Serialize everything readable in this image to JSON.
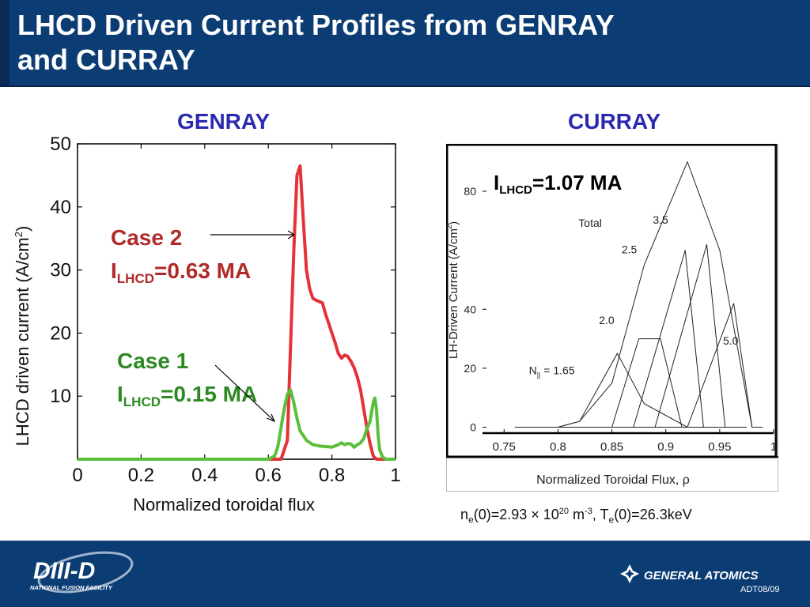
{
  "slide": {
    "title_line1": "LHCD Driven Current Profiles from GENRAY",
    "title_line2": "and CURRAY",
    "footer_code": "ADT08/09",
    "logos": {
      "diii_d_main": "DIII-D",
      "diii_d_sub": "NATIONAL FUSION FACILITY",
      "general_atomics": "GENERAL ATOMICS"
    },
    "params": {
      "ne_label": "n",
      "ne_sub": "e",
      "ne_value": "(0)=2.93 × 10",
      "ne_exp": "20",
      "ne_unit": " m",
      "ne_unit_exp": "-3",
      "sep": ", T",
      "te_sub": "e",
      "te_value": "(0)=26.3keV"
    }
  },
  "chart_data": [
    {
      "type": "line",
      "heading": "GENRAY",
      "xlabel": "Normalized toroidal flux",
      "ylabel_main": "LHCD driven current (A/cm",
      "ylabel_sup": "2",
      "ylabel_end": ")",
      "xlim": [
        0,
        1
      ],
      "ylim": [
        0,
        50
      ],
      "xticks": [
        "0",
        "0.2",
        "0.4",
        "0.6",
        "0.8",
        "1"
      ],
      "yticks": [
        "10",
        "20",
        "30",
        "40",
        "50"
      ],
      "series": [
        {
          "name": "Case 2",
          "color": "#e53238",
          "x": [
            0.0,
            0.6,
            0.64,
            0.66,
            0.67,
            0.68,
            0.69,
            0.7,
            0.71,
            0.72,
            0.73,
            0.74,
            0.75,
            0.76,
            0.77,
            0.78,
            0.79,
            0.8,
            0.81,
            0.82,
            0.83,
            0.84,
            0.85,
            0.86,
            0.87,
            0.88,
            0.89,
            0.9,
            0.91,
            0.92,
            0.93,
            0.94,
            0.96,
            1.0
          ],
          "values": [
            0,
            0,
            0,
            3,
            18,
            33,
            45,
            46.5,
            38,
            30,
            27,
            25.5,
            25.2,
            25,
            24.8,
            23,
            21.5,
            20,
            18.5,
            16.8,
            16,
            16.5,
            16.3,
            15.5,
            14.5,
            13,
            11,
            8,
            5,
            2.5,
            0.5,
            0,
            0,
            0
          ]
        },
        {
          "name": "Case 1",
          "color": "#5abf3a",
          "x": [
            0.0,
            0.6,
            0.62,
            0.63,
            0.64,
            0.65,
            0.66,
            0.67,
            0.68,
            0.69,
            0.7,
            0.72,
            0.74,
            0.76,
            0.78,
            0.8,
            0.82,
            0.83,
            0.84,
            0.85,
            0.86,
            0.87,
            0.88,
            0.89,
            0.9,
            0.91,
            0.92,
            0.93,
            0.935,
            0.94,
            0.945,
            0.95,
            0.96,
            0.97,
            1.0
          ],
          "values": [
            0,
            0,
            0.5,
            2,
            5,
            8,
            10.3,
            11,
            9,
            6.5,
            4.5,
            3,
            2.3,
            2.1,
            2.0,
            1.9,
            2.3,
            2.6,
            2.3,
            2.5,
            2.4,
            1.9,
            2.3,
            2.6,
            3.3,
            4.8,
            6,
            9,
            9.7,
            8,
            4,
            1.5,
            0.3,
            0,
            0
          ]
        }
      ],
      "annotations": [
        {
          "line1": "Case 2",
          "line2_pre": "I",
          "line2_sub": "LHCD",
          "line2_post": "=0.63 MA",
          "color": "#b02a2a"
        },
        {
          "line1": "Case 1",
          "line2_pre": "I",
          "line2_sub": "LHCD",
          "line2_post": "=0.15 MA",
          "color": "#2d8a22"
        }
      ]
    },
    {
      "type": "line",
      "heading": "CURRAY",
      "xlabel": "Normalized Toroidal Flux, ρ",
      "ylabel": "LH-Driven Current (A/cm  )",
      "ylabel_exp": "2",
      "xlim": [
        0.73,
        1.0
      ],
      "ylim": [
        -2,
        95
      ],
      "xticks": [
        {
          "v": 0.75,
          "t": "0.75"
        },
        {
          "v": 0.8,
          "t": "0.8"
        },
        {
          "v": 0.85,
          "t": "0.85"
        },
        {
          "v": 0.9,
          "t": "0.9"
        },
        {
          "v": 0.95,
          "t": "0.95"
        },
        {
          "v": 1.0,
          "t": "1"
        }
      ],
      "yticks": [
        {
          "v": 0,
          "t": "0"
        },
        {
          "v": 20,
          "t": "20"
        },
        {
          "v": 40,
          "t": "40"
        },
        {
          "v": 80,
          "t": "80"
        }
      ],
      "total_label": {
        "pre": "I",
        "sub": "LHCD",
        "post": "=1.07 MA"
      },
      "series": [
        {
          "name": "N∥ = 1.65",
          "x": [
            0.76,
            0.8,
            0.82,
            0.855,
            0.88,
            0.92,
            0.96
          ],
          "values": [
            0,
            0,
            2,
            25,
            8,
            0,
            0
          ]
        },
        {
          "name": "2.0",
          "x": [
            0.8,
            0.85,
            0.875,
            0.895,
            0.915,
            0.96
          ],
          "values": [
            0,
            0,
            30,
            30,
            0,
            0
          ]
        },
        {
          "name": "2.5",
          "x": [
            0.84,
            0.87,
            0.918,
            0.935,
            0.96
          ],
          "values": [
            0,
            0,
            60,
            0,
            0
          ]
        },
        {
          "name": "3.5",
          "x": [
            0.86,
            0.89,
            0.938,
            0.955,
            0.975
          ],
          "values": [
            0,
            0,
            62,
            0,
            0
          ]
        },
        {
          "name": "5.0",
          "x": [
            0.88,
            0.92,
            0.963,
            0.98,
            0.99
          ],
          "values": [
            0,
            0,
            42,
            0,
            0
          ]
        },
        {
          "name": "Total",
          "x": [
            0.76,
            0.8,
            0.82,
            0.85,
            0.88,
            0.92,
            0.95,
            0.97,
            0.98
          ],
          "values": [
            0,
            0,
            2,
            15,
            55,
            90,
            60,
            20,
            0
          ]
        }
      ],
      "series_labels": [
        {
          "t": "Total",
          "x": 0.819,
          "y": 68
        },
        {
          "t": "2.5",
          "x": 0.859,
          "y": 59
        },
        {
          "t": "3.5",
          "x": 0.888,
          "y": 69
        },
        {
          "t": "2.0",
          "x": 0.838,
          "y": 35
        },
        {
          "t": "5.0",
          "x": 0.953,
          "y": 28
        },
        {
          "t": "N",
          "x": 0.773,
          "y": 18
        }
      ]
    }
  ]
}
